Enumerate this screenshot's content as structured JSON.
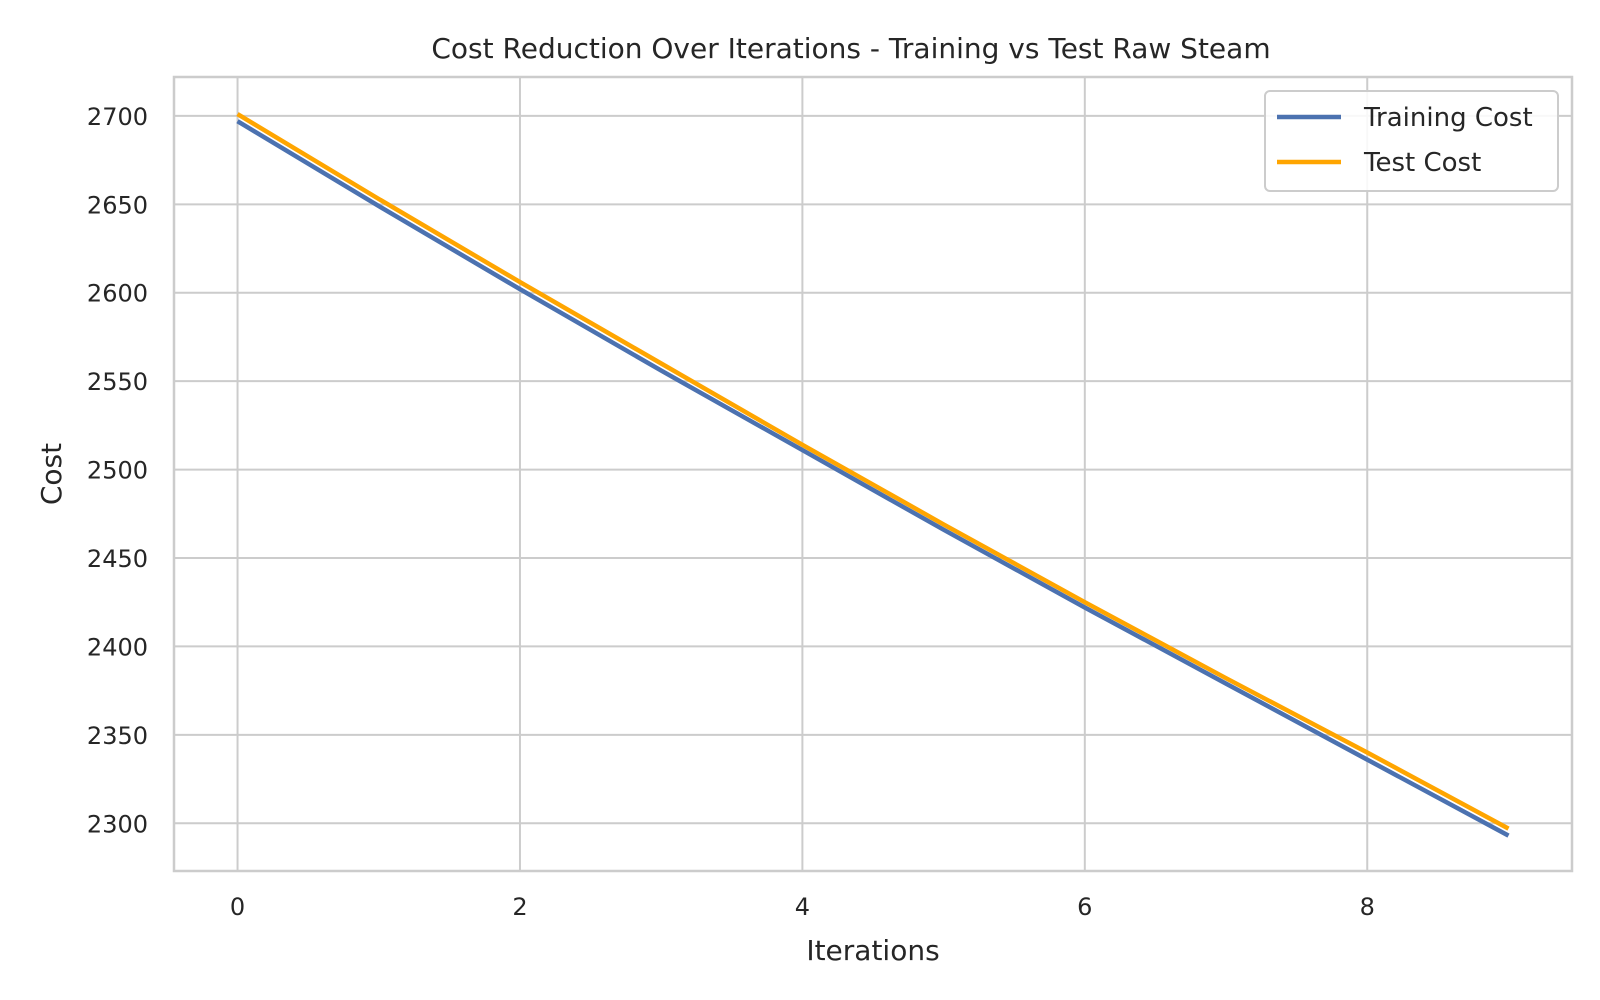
{
  "chart_data": {
    "type": "line",
    "title": "Cost Reduction Over Iterations - Training vs Test Raw Steam",
    "xlabel": "Iterations",
    "ylabel": "Cost",
    "xlim": [
      -0.45,
      9.45
    ],
    "ylim": [
      2273,
      2722
    ],
    "xticks": [
      0,
      2,
      4,
      6,
      8
    ],
    "yticks": [
      2300,
      2350,
      2400,
      2450,
      2500,
      2550,
      2600,
      2650,
      2700
    ],
    "grid": true,
    "legend_position": "top-right",
    "x": [
      0,
      1,
      2,
      3,
      4,
      5,
      6,
      7,
      8,
      9
    ],
    "series": [
      {
        "name": "Training Cost",
        "color": "#4c72b0",
        "values": [
          2697,
          2649,
          2602,
          2556,
          2511,
          2466,
          2422,
          2379,
          2336,
          2293
        ]
      },
      {
        "name": "Test Cost",
        "color": "#ffa500",
        "values": [
          2701,
          2653,
          2606,
          2560,
          2514,
          2469,
          2425,
          2382,
          2340,
          2297
        ]
      }
    ]
  }
}
